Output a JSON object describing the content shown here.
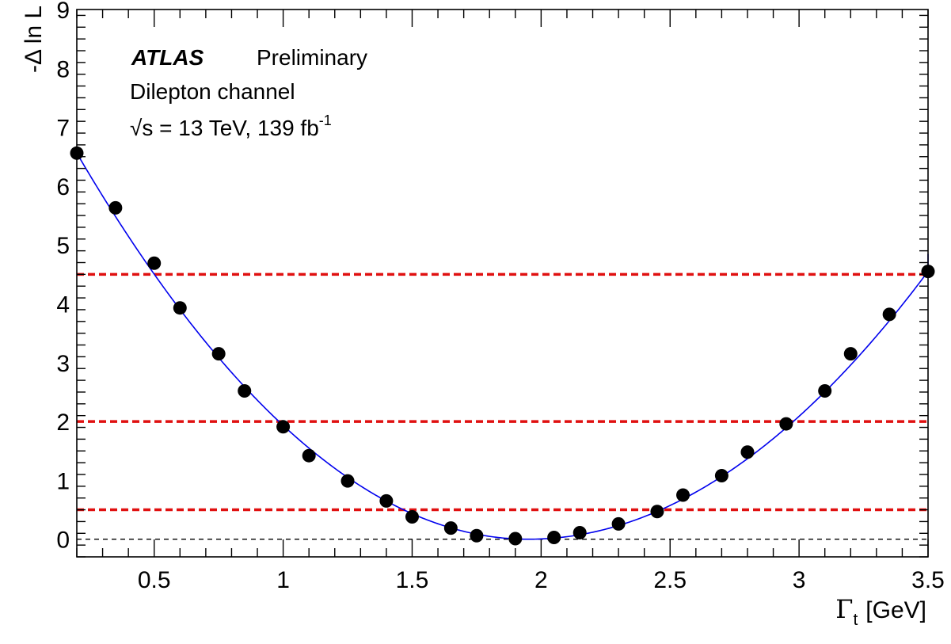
{
  "chart_data": {
    "type": "scatter",
    "xlabel": {
      "symbol": "Γ",
      "subscript": "t",
      "unit": "[GeV]"
    },
    "ylabel": "-Δ ln L",
    "xlim": [
      0.2,
      3.5
    ],
    "ylim": [
      -0.3,
      9
    ],
    "x_ticks": [
      {
        "value": 0.5,
        "label": "0.5"
      },
      {
        "value": 1,
        "label": "1"
      },
      {
        "value": 1.5,
        "label": "1.5"
      },
      {
        "value": 2,
        "label": "2"
      },
      {
        "value": 2.5,
        "label": "2.5"
      },
      {
        "value": 3,
        "label": "3"
      },
      {
        "value": 3.5,
        "label": "3.5"
      }
    ],
    "y_ticks": [
      {
        "value": 0,
        "label": "0"
      },
      {
        "value": 1,
        "label": "1"
      },
      {
        "value": 2,
        "label": "2"
      },
      {
        "value": 3,
        "label": "3"
      },
      {
        "value": 4,
        "label": "4"
      },
      {
        "value": 5,
        "label": "5"
      },
      {
        "value": 6,
        "label": "6"
      },
      {
        "value": 7,
        "label": "7"
      },
      {
        "value": 8,
        "label": "8"
      },
      {
        "value": 9,
        "label": "9"
      }
    ],
    "points": {
      "x": [
        0.2,
        0.35,
        0.5,
        0.6,
        0.75,
        0.85,
        1.0,
        1.1,
        1.25,
        1.4,
        1.5,
        1.65,
        1.75,
        1.9,
        2.05,
        2.15,
        2.3,
        2.45,
        2.55,
        2.7,
        2.8,
        2.95,
        3.1,
        3.2,
        3.35,
        3.5
      ],
      "y": [
        6.56,
        5.63,
        4.69,
        3.93,
        3.15,
        2.52,
        1.91,
        1.42,
        0.99,
        0.65,
        0.38,
        0.19,
        0.06,
        0.01,
        0.03,
        0.11,
        0.26,
        0.47,
        0.75,
        1.08,
        1.48,
        1.96,
        2.52,
        3.15,
        3.82,
        4.55
      ],
      "color": "#000000"
    },
    "fit_curve": {
      "color": "#0000ee",
      "min_x": 1.95,
      "extends_to_x": 3.55
    },
    "reference_lines": [
      {
        "y": 0.5,
        "color": "#e01010",
        "style": "dashed"
      },
      {
        "y": 2.0,
        "color": "#e01010",
        "style": "dashed"
      },
      {
        "y": 4.5,
        "color": "#e01010",
        "style": "dashed"
      },
      {
        "y": 0.0,
        "color": "#000000",
        "style": "dashed"
      }
    ],
    "annotations": {
      "experiment": "ATLAS",
      "status": "Preliminary",
      "channel": "Dilepton channel",
      "energy_lumi": {
        "sqrt": "√",
        "s_part": "s = 13 TeV, 139 fb",
        "superscript": "-1"
      }
    },
    "grid": false,
    "legend": "none"
  }
}
